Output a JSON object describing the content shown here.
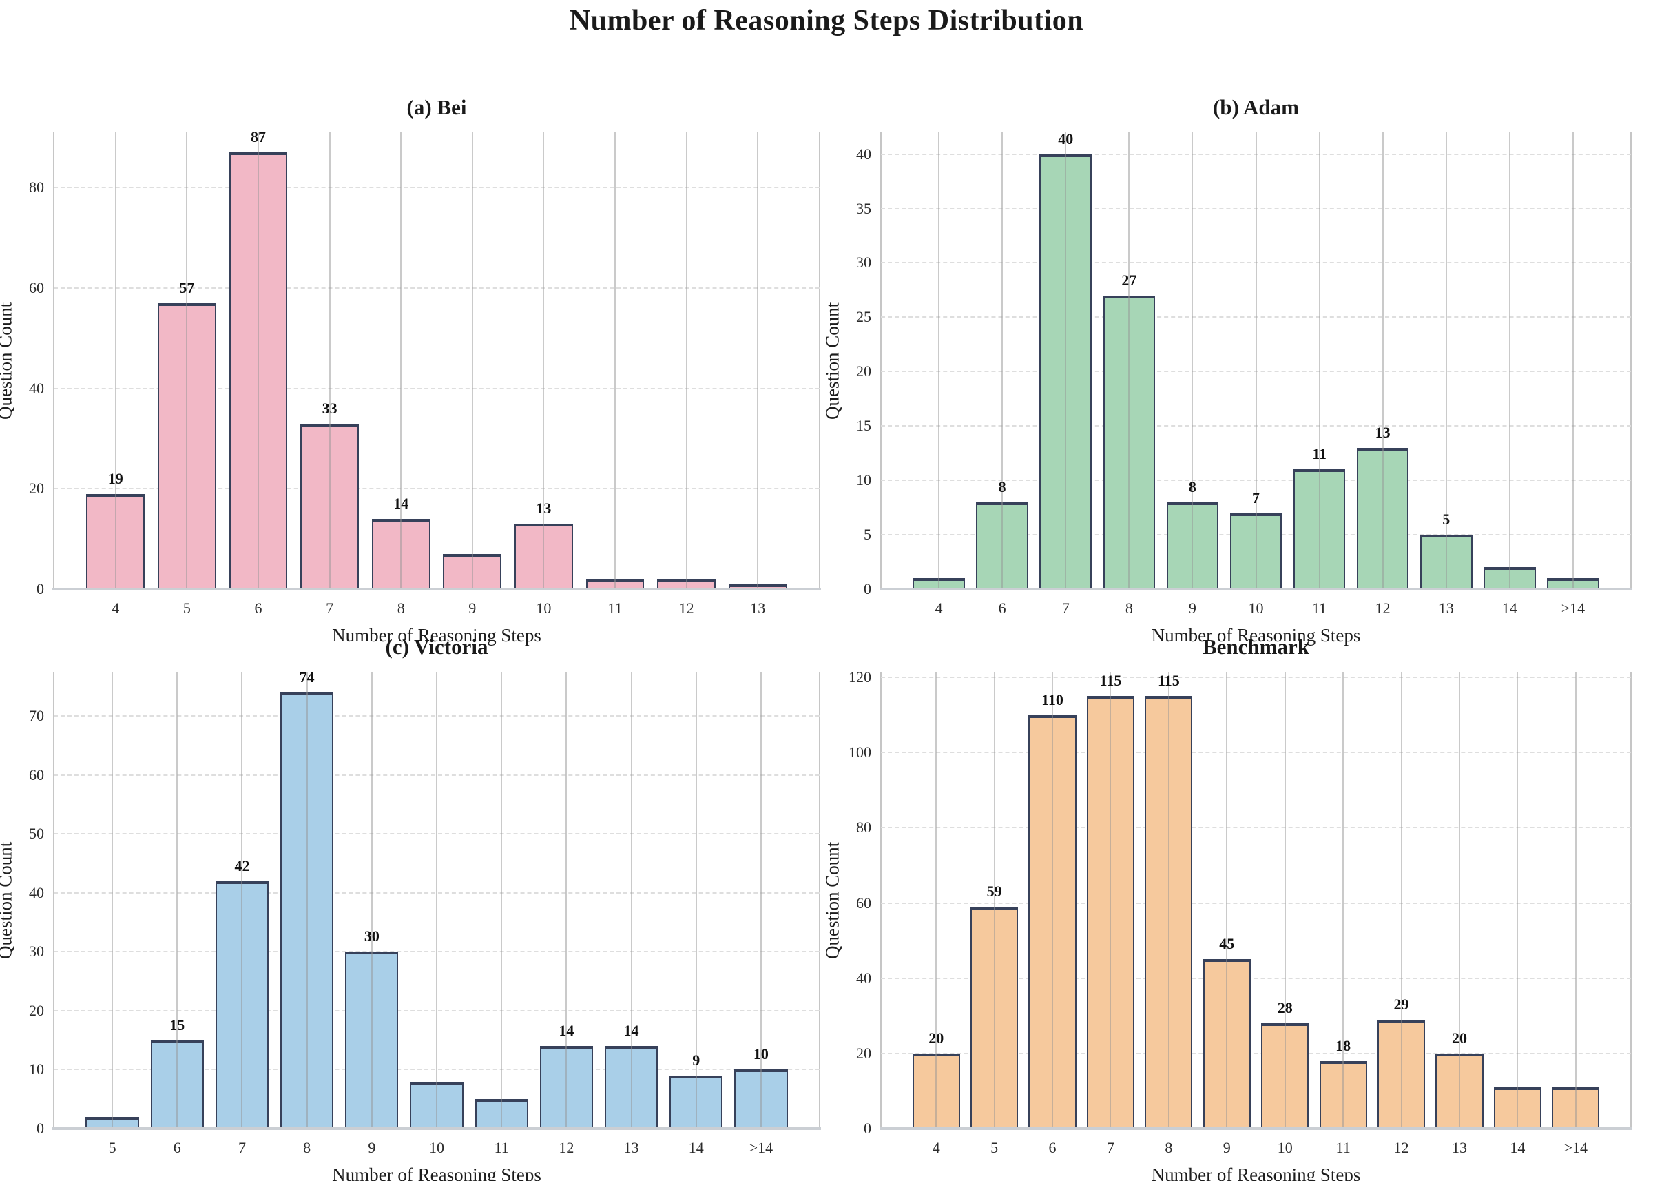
{
  "page_title": "Number of Reasoning Steps Distribution",
  "chart_data": [
    {
      "type": "bar",
      "title": "(a) Bei",
      "xlabel": "Number of Reasoning Steps",
      "ylabel": "Question Count",
      "categories": [
        "4",
        "5",
        "6",
        "7",
        "8",
        "9",
        "10",
        "11",
        "12",
        "13"
      ],
      "values": [
        19,
        57,
        87,
        33,
        14,
        7,
        13,
        2,
        2,
        1
      ],
      "bar_labels": [
        "19",
        "57",
        "87",
        "33",
        "14",
        "",
        "13",
        "",
        "",
        ""
      ],
      "ylim": [
        0,
        91
      ],
      "yticks": [
        0,
        20,
        40,
        60,
        80
      ],
      "grid": {
        "vertical": "solid",
        "horizontal": "dashed"
      },
      "legend": null,
      "colors": {
        "bar": "#F2B8C6",
        "edge": "#37415A"
      }
    },
    {
      "type": "bar",
      "title": "(b) Adam",
      "xlabel": "Number of Reasoning Steps",
      "ylabel": "Question Count",
      "categories": [
        "4",
        "6",
        "7",
        "8",
        "9",
        "10",
        "11",
        "12",
        "13",
        "14",
        ">14"
      ],
      "values": [
        1,
        8,
        40,
        27,
        8,
        7,
        11,
        13,
        5,
        2,
        1
      ],
      "bar_labels": [
        "",
        "8",
        "40",
        "27",
        "8",
        "7",
        "11",
        "13",
        "5",
        "",
        ""
      ],
      "ylim": [
        0,
        42
      ],
      "yticks": [
        0,
        5,
        10,
        15,
        20,
        25,
        30,
        35,
        40
      ],
      "grid": {
        "vertical": "solid",
        "horizontal": "dashed"
      },
      "legend": null,
      "colors": {
        "bar": "#A7D6B6",
        "edge": "#37415A"
      }
    },
    {
      "type": "bar",
      "title": "(c) Victoria",
      "xlabel": "Number of Reasoning Steps",
      "ylabel": "Question Count",
      "categories": [
        "5",
        "6",
        "7",
        "8",
        "9",
        "10",
        "11",
        "12",
        "13",
        "14",
        ">14"
      ],
      "values": [
        2,
        15,
        42,
        74,
        30,
        8,
        5,
        14,
        14,
        9,
        10
      ],
      "bar_labels": [
        "",
        "15",
        "42",
        "74",
        "30",
        "",
        "",
        "14",
        "14",
        "9",
        "10"
      ],
      "ylim": [
        0,
        77.5
      ],
      "yticks": [
        0,
        10,
        20,
        30,
        40,
        50,
        60,
        70
      ],
      "grid": {
        "vertical": "solid",
        "horizontal": "dashed"
      },
      "legend": null,
      "colors": {
        "bar": "#A9CFE8",
        "edge": "#37415A"
      }
    },
    {
      "type": "bar",
      "title": "Benchmark",
      "xlabel": "Number of Reasoning Steps",
      "ylabel": "Question Count",
      "categories": [
        "4",
        "5",
        "6",
        "7",
        "8",
        "9",
        "10",
        "11",
        "12",
        "13",
        "14",
        ">14"
      ],
      "values": [
        20,
        59,
        110,
        115,
        115,
        45,
        28,
        18,
        29,
        20,
        11,
        11
      ],
      "bar_labels": [
        "20",
        "59",
        "110",
        "115",
        "115",
        "45",
        "28",
        "18",
        "29",
        "20",
        "",
        ""
      ],
      "ylim": [
        0,
        121.5
      ],
      "yticks": [
        0,
        20,
        40,
        60,
        80,
        100,
        120
      ],
      "grid": {
        "vertical": "solid",
        "horizontal": "dashed"
      },
      "legend": null,
      "colors": {
        "bar": "#F6C99D",
        "edge": "#37415A"
      }
    }
  ]
}
